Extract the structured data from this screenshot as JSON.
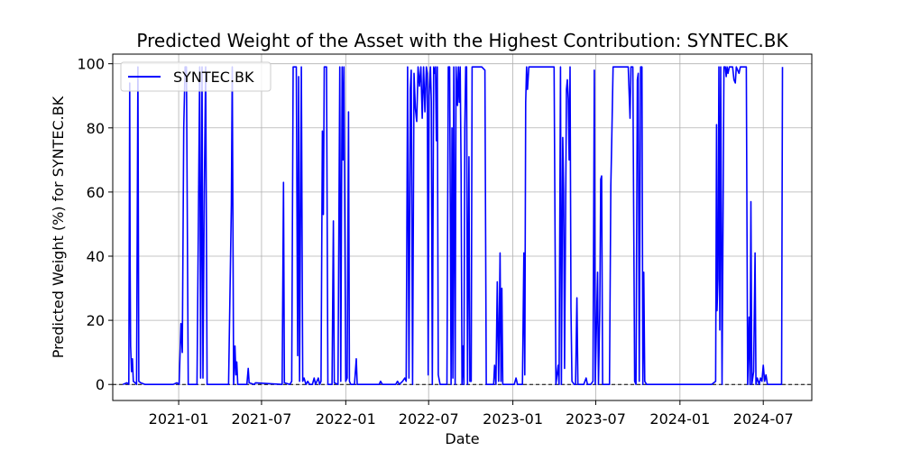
{
  "chart_data": {
    "type": "line",
    "title": "Predicted Weight of the Asset with the Highest Contribution: SYNTEC.BK",
    "xlabel": "Date",
    "ylabel": "Predicted Weight (%) for SYNTEC.BK",
    "x_ticks": [
      "2021-01",
      "2021-07",
      "2022-01",
      "2022-07",
      "2023-01",
      "2023-07",
      "2024-01",
      "2024-07"
    ],
    "y_ticks": [
      0,
      20,
      40,
      60,
      80,
      100
    ],
    "xlim": [
      "2020-08-10",
      "2024-10-15"
    ],
    "ylim": [
      -5,
      103
    ],
    "grid": true,
    "legend_position": "upper-left",
    "reference_line": {
      "y": 0,
      "style": "dashed",
      "color": "#000000"
    },
    "series": [
      {
        "name": "SYNTEC.BK",
        "color": "#0000ff",
        "points": [
          [
            "2020-09-01",
            0
          ],
          [
            "2020-09-10",
            0.5
          ],
          [
            "2020-09-14",
            0
          ],
          [
            "2020-09-16",
            94
          ],
          [
            "2020-09-17",
            36
          ],
          [
            "2020-09-18",
            12
          ],
          [
            "2020-09-20",
            4
          ],
          [
            "2020-09-22",
            8
          ],
          [
            "2020-09-24",
            1
          ],
          [
            "2020-09-28",
            0.5
          ],
          [
            "2020-10-01",
            0
          ],
          [
            "2020-10-04",
            99
          ],
          [
            "2020-10-06",
            1
          ],
          [
            "2020-10-10",
            0.5
          ],
          [
            "2020-10-20",
            0
          ],
          [
            "2020-12-20",
            0
          ],
          [
            "2020-12-28",
            0.5
          ],
          [
            "2021-01-02",
            0
          ],
          [
            "2021-01-06",
            19
          ],
          [
            "2021-01-09",
            10
          ],
          [
            "2021-01-12",
            80
          ],
          [
            "2021-01-15",
            99
          ],
          [
            "2021-01-18",
            99
          ],
          [
            "2021-01-22",
            0
          ],
          [
            "2021-02-10",
            0
          ],
          [
            "2021-02-16",
            99
          ],
          [
            "2021-02-18",
            2
          ],
          [
            "2021-02-21",
            99
          ],
          [
            "2021-02-23",
            2
          ],
          [
            "2021-02-26",
            60
          ],
          [
            "2021-03-01",
            99
          ],
          [
            "2021-03-04",
            0
          ],
          [
            "2021-04-20",
            0
          ],
          [
            "2021-04-26",
            56
          ],
          [
            "2021-04-28",
            99
          ],
          [
            "2021-05-01",
            0
          ],
          [
            "2021-05-04",
            12
          ],
          [
            "2021-05-06",
            3
          ],
          [
            "2021-05-08",
            7
          ],
          [
            "2021-05-10",
            0
          ],
          [
            "2021-05-30",
            0
          ],
          [
            "2021-06-02",
            5
          ],
          [
            "2021-06-04",
            0.5
          ],
          [
            "2021-06-15",
            0
          ],
          [
            "2021-06-18",
            0.5
          ],
          [
            "2021-08-15",
            0
          ],
          [
            "2021-08-18",
            63
          ],
          [
            "2021-08-20",
            0.5
          ],
          [
            "2021-09-01",
            0
          ],
          [
            "2021-09-05",
            1
          ],
          [
            "2021-09-08",
            99
          ],
          [
            "2021-09-12",
            99
          ],
          [
            "2021-09-15",
            99
          ],
          [
            "2021-09-18",
            9
          ],
          [
            "2021-09-20",
            96
          ],
          [
            "2021-09-22",
            1
          ],
          [
            "2021-09-26",
            99
          ],
          [
            "2021-09-29",
            1
          ],
          [
            "2021-10-02",
            2
          ],
          [
            "2021-10-06",
            0
          ],
          [
            "2021-10-10",
            1
          ],
          [
            "2021-10-14",
            0
          ],
          [
            "2021-10-20",
            0
          ],
          [
            "2021-10-24",
            2
          ],
          [
            "2021-10-27",
            0
          ],
          [
            "2021-11-02",
            2
          ],
          [
            "2021-11-05",
            0
          ],
          [
            "2021-11-08",
            1
          ],
          [
            "2021-11-11",
            79
          ],
          [
            "2021-11-13",
            53
          ],
          [
            "2021-11-15",
            99
          ],
          [
            "2021-11-20",
            99
          ],
          [
            "2021-11-23",
            0
          ],
          [
            "2021-12-02",
            0
          ],
          [
            "2021-12-05",
            51
          ],
          [
            "2021-12-07",
            0.5
          ],
          [
            "2021-12-15",
            0
          ],
          [
            "2021-12-19",
            99
          ],
          [
            "2021-12-21",
            1
          ],
          [
            "2021-12-24",
            99
          ],
          [
            "2021-12-26",
            70
          ],
          [
            "2021-12-28",
            99
          ],
          [
            "2022-01-01",
            1
          ],
          [
            "2022-01-04",
            2
          ],
          [
            "2022-01-07",
            85
          ],
          [
            "2022-01-09",
            1
          ],
          [
            "2022-01-12",
            0
          ],
          [
            "2022-01-20",
            0
          ],
          [
            "2022-01-24",
            8
          ],
          [
            "2022-01-26",
            0
          ],
          [
            "2022-03-15",
            0
          ],
          [
            "2022-03-18",
            1
          ],
          [
            "2022-03-22",
            0
          ],
          [
            "2022-04-20",
            0
          ],
          [
            "2022-04-24",
            1
          ],
          [
            "2022-04-28",
            0
          ],
          [
            "2022-05-05",
            1
          ],
          [
            "2022-05-10",
            2
          ],
          [
            "2022-05-13",
            1
          ],
          [
            "2022-05-16",
            99
          ],
          [
            "2022-05-19",
            2
          ],
          [
            "2022-05-22",
            92
          ],
          [
            "2022-05-24",
            98
          ],
          [
            "2022-05-27",
            0
          ],
          [
            "2022-05-30",
            97
          ],
          [
            "2022-06-02",
            86
          ],
          [
            "2022-06-05",
            82
          ],
          [
            "2022-06-08",
            99
          ],
          [
            "2022-06-11",
            93
          ],
          [
            "2022-06-14",
            99
          ],
          [
            "2022-06-17",
            83
          ],
          [
            "2022-06-20",
            99
          ],
          [
            "2022-06-23",
            85
          ],
          [
            "2022-06-26",
            99
          ],
          [
            "2022-06-28",
            97
          ],
          [
            "2022-06-30",
            3
          ],
          [
            "2022-07-02",
            90
          ],
          [
            "2022-07-05",
            99
          ],
          [
            "2022-07-07",
            88
          ],
          [
            "2022-07-09",
            0
          ],
          [
            "2022-07-12",
            99
          ],
          [
            "2022-07-14",
            97
          ],
          [
            "2022-07-16",
            99
          ],
          [
            "2022-07-18",
            76
          ],
          [
            "2022-07-20",
            99
          ],
          [
            "2022-07-22",
            3
          ],
          [
            "2022-07-26",
            0
          ],
          [
            "2022-08-10",
            0
          ],
          [
            "2022-08-13",
            99
          ],
          [
            "2022-08-16",
            99
          ],
          [
            "2022-08-19",
            0
          ],
          [
            "2022-08-21",
            80
          ],
          [
            "2022-08-23",
            2
          ],
          [
            "2022-08-25",
            99
          ],
          [
            "2022-08-28",
            0
          ],
          [
            "2022-08-30",
            99
          ],
          [
            "2022-09-02",
            87
          ],
          [
            "2022-09-04",
            99
          ],
          [
            "2022-09-06",
            88
          ],
          [
            "2022-09-08",
            99
          ],
          [
            "2022-09-10",
            66
          ],
          [
            "2022-09-12",
            0
          ],
          [
            "2022-09-14",
            12
          ],
          [
            "2022-09-16",
            0
          ],
          [
            "2022-09-18",
            80
          ],
          [
            "2022-09-20",
            99
          ],
          [
            "2022-09-22",
            99
          ],
          [
            "2022-09-24",
            0
          ],
          [
            "2022-09-27",
            71
          ],
          [
            "2022-09-29",
            1
          ],
          [
            "2022-10-02",
            1
          ],
          [
            "2022-10-04",
            99
          ],
          [
            "2022-10-10",
            99
          ],
          [
            "2022-10-25",
            99
          ],
          [
            "2022-11-01",
            98
          ],
          [
            "2022-11-04",
            0
          ],
          [
            "2022-11-20",
            0
          ],
          [
            "2022-11-22",
            6
          ],
          [
            "2022-11-25",
            0
          ],
          [
            "2022-11-28",
            32
          ],
          [
            "2022-12-01",
            1
          ],
          [
            "2022-12-04",
            41
          ],
          [
            "2022-12-06",
            1
          ],
          [
            "2022-12-08",
            30
          ],
          [
            "2022-12-10",
            0
          ],
          [
            "2022-12-25",
            0
          ],
          [
            "2023-01-04",
            0
          ],
          [
            "2023-01-08",
            2
          ],
          [
            "2023-01-11",
            0
          ],
          [
            "2023-01-14",
            0
          ],
          [
            "2023-01-22",
            0
          ],
          [
            "2023-01-25",
            41
          ],
          [
            "2023-01-27",
            3
          ],
          [
            "2023-01-29",
            88
          ],
          [
            "2023-01-31",
            99
          ],
          [
            "2023-02-02",
            92
          ],
          [
            "2023-02-05",
            99
          ],
          [
            "2023-02-12",
            99
          ],
          [
            "2023-03-20",
            99
          ],
          [
            "2023-04-01",
            99
          ],
          [
            "2023-04-05",
            0
          ],
          [
            "2023-04-10",
            6
          ],
          [
            "2023-04-12",
            0
          ],
          [
            "2023-04-15",
            99
          ],
          [
            "2023-04-17",
            0
          ],
          [
            "2023-04-20",
            77
          ],
          [
            "2023-04-22",
            60
          ],
          [
            "2023-04-24",
            5
          ],
          [
            "2023-04-28",
            92
          ],
          [
            "2023-04-30",
            95
          ],
          [
            "2023-05-02",
            89
          ],
          [
            "2023-05-04",
            70
          ],
          [
            "2023-05-06",
            99
          ],
          [
            "2023-05-08",
            24
          ],
          [
            "2023-05-10",
            1
          ],
          [
            "2023-05-15",
            0
          ],
          [
            "2023-05-18",
            0
          ],
          [
            "2023-05-21",
            27
          ],
          [
            "2023-05-23",
            0
          ],
          [
            "2023-06-05",
            0
          ],
          [
            "2023-06-10",
            2
          ],
          [
            "2023-06-13",
            0
          ],
          [
            "2023-06-20",
            0
          ],
          [
            "2023-06-25",
            1
          ],
          [
            "2023-06-28",
            98
          ],
          [
            "2023-06-30",
            0
          ],
          [
            "2023-07-05",
            35
          ],
          [
            "2023-07-07",
            0
          ],
          [
            "2023-07-10",
            24
          ],
          [
            "2023-07-12",
            64
          ],
          [
            "2023-07-14",
            65
          ],
          [
            "2023-07-16",
            0
          ],
          [
            "2023-07-20",
            0
          ],
          [
            "2023-07-31",
            0
          ],
          [
            "2023-08-03",
            62
          ],
          [
            "2023-08-05",
            76
          ],
          [
            "2023-08-08",
            99
          ],
          [
            "2023-08-12",
            99
          ],
          [
            "2023-09-01",
            99
          ],
          [
            "2023-09-10",
            99
          ],
          [
            "2023-09-14",
            83
          ],
          [
            "2023-09-16",
            99
          ],
          [
            "2023-09-20",
            99
          ],
          [
            "2023-09-24",
            1
          ],
          [
            "2023-09-27",
            0
          ],
          [
            "2023-09-30",
            95
          ],
          [
            "2023-10-02",
            97
          ],
          [
            "2023-10-04",
            1
          ],
          [
            "2023-10-07",
            99
          ],
          [
            "2023-10-10",
            99
          ],
          [
            "2023-10-12",
            0
          ],
          [
            "2023-10-14",
            35
          ],
          [
            "2023-10-16",
            1
          ],
          [
            "2023-10-20",
            0
          ],
          [
            "2023-11-10",
            0
          ],
          [
            "2024-02-15",
            0
          ],
          [
            "2024-02-22",
            0
          ],
          [
            "2024-03-10",
            0
          ],
          [
            "2024-03-19",
            1
          ],
          [
            "2024-03-21",
            81
          ],
          [
            "2024-03-22",
            23
          ],
          [
            "2024-03-24",
            33
          ],
          [
            "2024-03-26",
            99
          ],
          [
            "2024-03-28",
            17
          ],
          [
            "2024-03-30",
            99
          ],
          [
            "2024-04-02",
            0
          ],
          [
            "2024-04-06",
            99
          ],
          [
            "2024-04-09",
            99
          ],
          [
            "2024-04-11",
            96
          ],
          [
            "2024-04-13",
            99
          ],
          [
            "2024-04-15",
            97
          ],
          [
            "2024-04-18",
            99
          ],
          [
            "2024-04-25",
            99
          ],
          [
            "2024-04-28",
            95
          ],
          [
            "2024-05-01",
            94
          ],
          [
            "2024-05-03",
            99
          ],
          [
            "2024-05-06",
            98
          ],
          [
            "2024-05-09",
            97
          ],
          [
            "2024-05-12",
            99
          ],
          [
            "2024-05-25",
            99
          ],
          [
            "2024-05-28",
            0
          ],
          [
            "2024-05-31",
            21
          ],
          [
            "2024-06-02",
            0
          ],
          [
            "2024-06-04",
            57
          ],
          [
            "2024-06-06",
            0
          ],
          [
            "2024-06-10",
            4
          ],
          [
            "2024-06-13",
            41
          ],
          [
            "2024-06-15",
            0
          ],
          [
            "2024-06-18",
            2
          ],
          [
            "2024-06-22",
            0
          ],
          [
            "2024-06-25",
            2
          ],
          [
            "2024-06-28",
            1
          ],
          [
            "2024-07-01",
            6
          ],
          [
            "2024-07-04",
            1
          ],
          [
            "2024-07-07",
            3
          ],
          [
            "2024-07-10",
            0
          ],
          [
            "2024-07-20",
            0
          ],
          [
            "2024-08-05",
            0
          ],
          [
            "2024-08-10",
            0
          ],
          [
            "2024-08-12",
            99
          ]
        ]
      }
    ]
  }
}
